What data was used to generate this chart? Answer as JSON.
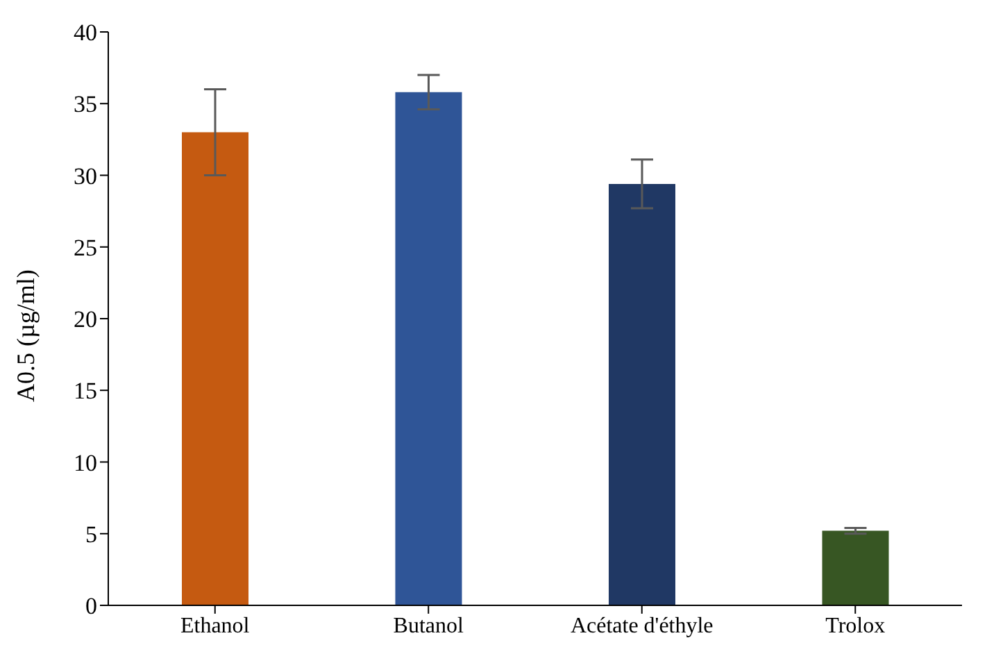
{
  "chart_data": {
    "type": "bar",
    "ylabel": "A0.5 (µg/ml)",
    "categories": [
      "Ethanol",
      "Butanol",
      "Acétate d'éthyle",
      "Trolox"
    ],
    "values": [
      33,
      35.8,
      29.4,
      5.2
    ],
    "colors": [
      "#c55a11",
      "#2f5597",
      "#203864",
      "#375623"
    ],
    "errors": [
      3,
      1.2,
      1.7,
      0.2
    ],
    "ylim": [
      0,
      40
    ],
    "yticks": [
      0,
      5,
      10,
      15,
      20,
      25,
      30,
      35,
      40
    ],
    "grid": false
  }
}
